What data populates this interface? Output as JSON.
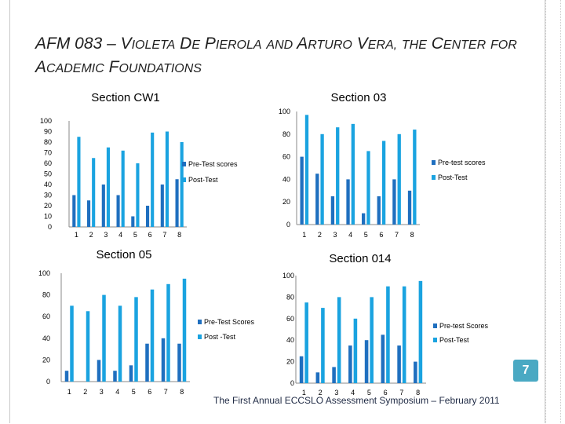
{
  "slide": {
    "title": "AFM 083 – Violeta De Pierola and Arturo Vera, the Center for Academic Foundations",
    "page_number": "7",
    "footer": "The First Annual ECCSLO Assessment Symposium – February 2011"
  },
  "colors": {
    "pre": "#1f6fbf",
    "post": "#1aa3e0",
    "axis": "#888888"
  },
  "chart_data": [
    {
      "type": "bar",
      "title": "Section CW1",
      "categories": [
        "1",
        "2",
        "3",
        "4",
        "5",
        "6",
        "7",
        "8"
      ],
      "ylim": [
        0,
        100
      ],
      "yticks": [
        0,
        10,
        20,
        30,
        40,
        50,
        60,
        70,
        80,
        90,
        100
      ],
      "series": [
        {
          "name": "Pre-Test scores",
          "values": [
            30,
            25,
            40,
            30,
            10,
            20,
            40,
            45
          ]
        },
        {
          "name": "Post-Test",
          "values": [
            85,
            65,
            75,
            72,
            60,
            89,
            90,
            80
          ]
        }
      ],
      "legend": "right"
    },
    {
      "type": "bar",
      "title": "Section 03",
      "categories": [
        "1",
        "2",
        "3",
        "4",
        "5",
        "6",
        "7",
        "8"
      ],
      "ylim": [
        0,
        100
      ],
      "yticks": [
        0,
        20,
        40,
        60,
        80,
        100
      ],
      "series": [
        {
          "name": "Pre-test scores",
          "values": [
            60,
            45,
            25,
            40,
            10,
            25,
            40,
            30
          ]
        },
        {
          "name": "Post-Test",
          "values": [
            97,
            80,
            86,
            89,
            65,
            74,
            80,
            84
          ]
        }
      ],
      "legend": "right"
    },
    {
      "type": "bar",
      "title": "Section 05",
      "categories": [
        "1",
        "2",
        "3",
        "4",
        "5",
        "6",
        "7",
        "8"
      ],
      "ylim": [
        0,
        100
      ],
      "yticks": [
        0,
        20,
        40,
        60,
        80,
        100
      ],
      "series": [
        {
          "name": "Pre-Test Scores",
          "values": [
            10,
            0,
            20,
            10,
            15,
            35,
            40,
            35
          ]
        },
        {
          "name": "Post -Test",
          "values": [
            70,
            65,
            80,
            70,
            78,
            85,
            90,
            95
          ]
        }
      ],
      "legend": "right"
    },
    {
      "type": "bar",
      "title": "Section 014",
      "categories": [
        "1",
        "2",
        "3",
        "4",
        "5",
        "6",
        "7",
        "8"
      ],
      "ylim": [
        0,
        100
      ],
      "yticks": [
        0,
        20,
        40,
        60,
        80,
        100
      ],
      "series": [
        {
          "name": "Pre-test Scores",
          "values": [
            25,
            10,
            15,
            35,
            40,
            45,
            35,
            20
          ]
        },
        {
          "name": "Post-Test",
          "values": [
            75,
            70,
            80,
            60,
            80,
            90,
            90,
            95
          ]
        }
      ],
      "legend": "right"
    }
  ]
}
